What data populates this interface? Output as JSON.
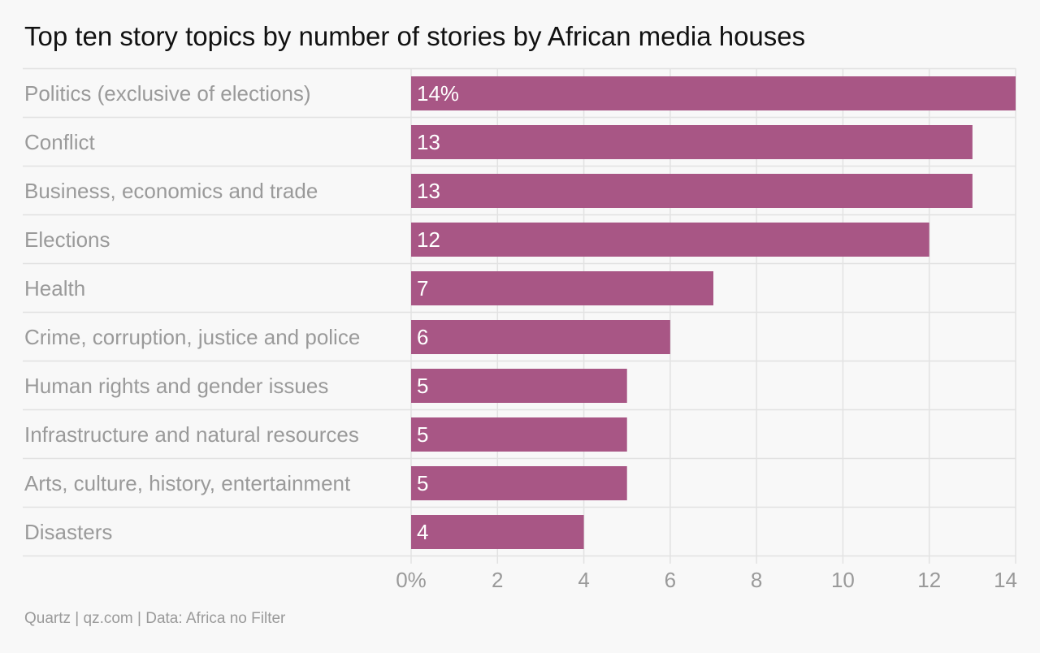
{
  "title": "Top ten story topics by number of stories by African media houses",
  "source": "Quartz | qz.com | Data: Africa no Filter",
  "colors": {
    "bar": "#a85685",
    "grid": "#e2e2e2",
    "background": "#f8f8f8",
    "label": "#9a9a9a"
  },
  "chart_data": {
    "type": "bar",
    "orientation": "horizontal",
    "title": "Top ten story topics by number of stories by African media houses",
    "categories": [
      "Politics (exclusive of elections)",
      "Conflict",
      "Business, economics and trade",
      "Elections",
      "Health",
      "Crime, corruption, justice and police",
      "Human rights and gender issues",
      "Infrastructure and natural resources",
      "Arts, culture, history, entertainment",
      "Disasters"
    ],
    "values": [
      14,
      13,
      13,
      12,
      7,
      6,
      5,
      5,
      5,
      4
    ],
    "value_labels": [
      "14%",
      "13",
      "13",
      "12",
      "7",
      "6",
      "5",
      "5",
      "5",
      "4"
    ],
    "xlim": [
      0,
      14
    ],
    "xticks": [
      0,
      2,
      4,
      6,
      8,
      10,
      12,
      14
    ],
    "xtick_labels": [
      "0%",
      "2",
      "4",
      "6",
      "8",
      "10",
      "12",
      "14"
    ],
    "grid": true
  }
}
